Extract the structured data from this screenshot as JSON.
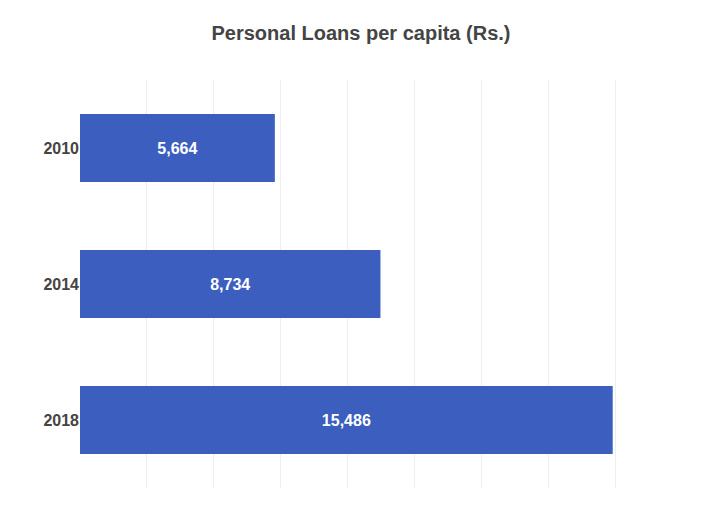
{
  "chart_data": {
    "type": "bar",
    "orientation": "horizontal",
    "title": "Personal Loans per capita (Rs.)",
    "categories": [
      "2018",
      "2014",
      "2010"
    ],
    "values": [
      15486,
      8734,
      5664
    ],
    "value_labels": [
      "15,486",
      "8,734",
      "5,664"
    ],
    "data_labels": true,
    "color": "#3B5EBF",
    "xlim": [
      0,
      17500
    ],
    "xticks": [
      0,
      1944.4444444444443,
      3888.8888888888887,
      5833.333333333333,
      7777.777777777777,
      9722.222222222223,
      11666.666666666666,
      13611.111111111111,
      15555.555555555555,
      17500
    ],
    "grid": true,
    "tick_labels": "y"
  }
}
